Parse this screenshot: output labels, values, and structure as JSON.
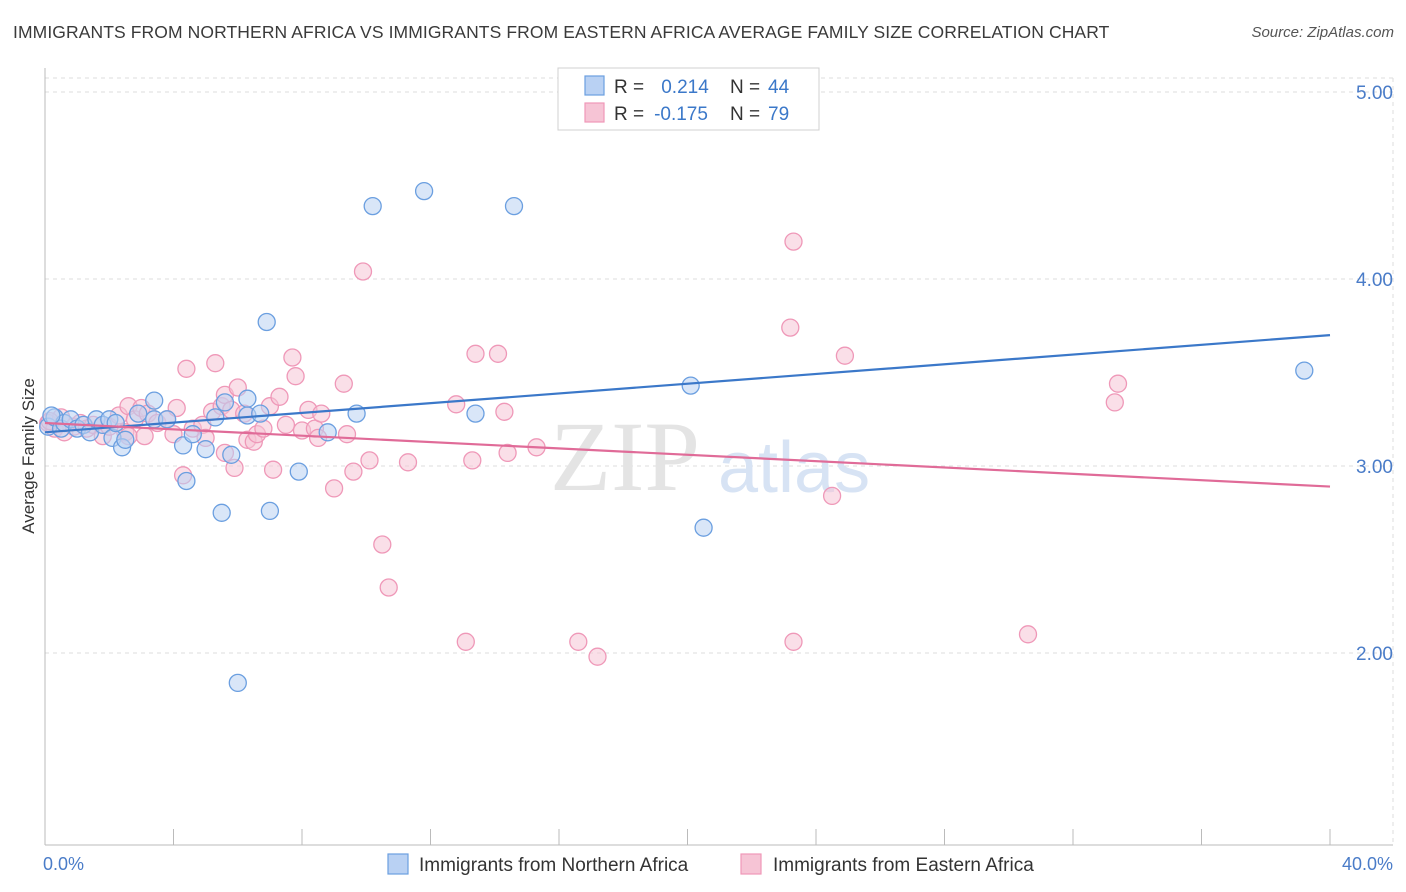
{
  "title": "IMMIGRANTS FROM NORTHERN AFRICA VS IMMIGRANTS FROM EASTERN AFRICA AVERAGE FAMILY SIZE CORRELATION CHART",
  "source": "Source: ZipAtlas.com",
  "watermark": {
    "part1": "ZIP",
    "part2": "atlas"
  },
  "colors": {
    "blue": "#3b78c9",
    "blue_fill": "#b9d1f3",
    "blue_stroke": "#6b9fe0",
    "pink": "#e06b98",
    "pink_fill": "#f6c4d5",
    "pink_stroke": "#ef98b8",
    "tick": "#4a7cc8",
    "grid": "#dddddd"
  },
  "legend": {
    "rows": [
      {
        "r_label": "R =",
        "r_value": "0.214",
        "n_label": "N =",
        "n_value": "44"
      },
      {
        "r_label": "R =",
        "r_value": "-0.175",
        "n_label": "N =",
        "n_value": "79"
      }
    ]
  },
  "chart_data": {
    "type": "scatter",
    "title": "IMMIGRANTS FROM NORTHERN AFRICA VS IMMIGRANTS FROM EASTERN AFRICA AVERAGE FAMILY SIZE CORRELATION CHART",
    "xlabel": "",
    "ylabel": "Average Family Size",
    "xlim": [
      0,
      40
    ],
    "ylim": [
      1.0,
      5.0
    ],
    "x_tick_labels": [
      "0.0%",
      "40.0%"
    ],
    "y_ticks": [
      2.0,
      3.0,
      4.0,
      5.0
    ],
    "y_tick_labels": [
      "2.00",
      "3.00",
      "4.00",
      "5.00"
    ],
    "grid": true,
    "legend_position": "top-center",
    "series": [
      {
        "name": "Immigrants from Northern Africa",
        "color": "#3b78c9",
        "trend": {
          "x": [
            0,
            40
          ],
          "y": [
            3.18,
            3.7
          ]
        },
        "points": [
          [
            0.1,
            3.21
          ],
          [
            0.3,
            3.26
          ],
          [
            0.5,
            3.2
          ],
          [
            0.6,
            3.23
          ],
          [
            0.8,
            3.25
          ],
          [
            1.0,
            3.2
          ],
          [
            1.2,
            3.22
          ],
          [
            1.4,
            3.18
          ],
          [
            1.6,
            3.25
          ],
          [
            1.8,
            3.22
          ],
          [
            2.0,
            3.25
          ],
          [
            2.1,
            3.15
          ],
          [
            2.2,
            3.23
          ],
          [
            2.4,
            3.1
          ],
          [
            2.5,
            3.14
          ],
          [
            2.9,
            3.28
          ],
          [
            3.4,
            3.25
          ],
          [
            3.8,
            3.25
          ],
          [
            3.4,
            3.35
          ],
          [
            4.3,
            3.11
          ],
          [
            4.4,
            2.92
          ],
          [
            4.6,
            3.17
          ],
          [
            5.0,
            3.09
          ],
          [
            5.3,
            3.26
          ],
          [
            5.5,
            2.75
          ],
          [
            5.6,
            3.34
          ],
          [
            5.8,
            3.06
          ],
          [
            6.0,
            1.84
          ],
          [
            6.3,
            3.36
          ],
          [
            6.3,
            3.27
          ],
          [
            6.7,
            3.28
          ],
          [
            6.9,
            3.77
          ],
          [
            7.0,
            2.76
          ],
          [
            7.9,
            2.97
          ],
          [
            8.8,
            3.18
          ],
          [
            9.7,
            3.28
          ],
          [
            10.2,
            4.39
          ],
          [
            11.8,
            4.47
          ],
          [
            13.4,
            3.28
          ],
          [
            14.6,
            4.39
          ],
          [
            20.1,
            3.43
          ],
          [
            20.5,
            2.67
          ],
          [
            39.2,
            3.51
          ],
          [
            0.2,
            3.27
          ]
        ]
      },
      {
        "name": "Immigrants from Eastern Africa",
        "color": "#e06b98",
        "trend": {
          "x": [
            0,
            40
          ],
          "y": [
            3.23,
            2.89
          ]
        },
        "points": [
          [
            0.1,
            3.23
          ],
          [
            0.3,
            3.2
          ],
          [
            0.5,
            3.26
          ],
          [
            0.6,
            3.18
          ],
          [
            0.9,
            3.21
          ],
          [
            1.1,
            3.23
          ],
          [
            1.3,
            3.2
          ],
          [
            1.5,
            3.22
          ],
          [
            1.8,
            3.16
          ],
          [
            2.0,
            3.21
          ],
          [
            2.3,
            3.27
          ],
          [
            2.5,
            3.18
          ],
          [
            2.6,
            3.16
          ],
          [
            2.6,
            3.32
          ],
          [
            2.8,
            3.25
          ],
          [
            3.0,
            3.31
          ],
          [
            3.2,
            3.28
          ],
          [
            3.1,
            3.16
          ],
          [
            3.5,
            3.23
          ],
          [
            3.8,
            3.25
          ],
          [
            4.0,
            3.17
          ],
          [
            4.1,
            3.31
          ],
          [
            4.3,
            2.95
          ],
          [
            4.4,
            3.52
          ],
          [
            4.6,
            3.2
          ],
          [
            4.9,
            3.22
          ],
          [
            5.0,
            3.15
          ],
          [
            5.2,
            3.29
          ],
          [
            5.3,
            3.55
          ],
          [
            5.5,
            3.32
          ],
          [
            5.6,
            3.38
          ],
          [
            5.8,
            3.3
          ],
          [
            5.9,
            2.99
          ],
          [
            6.0,
            3.42
          ],
          [
            6.2,
            3.28
          ],
          [
            6.3,
            3.14
          ],
          [
            6.5,
            3.13
          ],
          [
            6.6,
            3.17
          ],
          [
            6.8,
            3.2
          ],
          [
            7.0,
            3.32
          ],
          [
            7.1,
            2.98
          ],
          [
            7.3,
            3.37
          ],
          [
            7.5,
            3.22
          ],
          [
            7.7,
            3.58
          ],
          [
            7.8,
            3.48
          ],
          [
            8.0,
            3.19
          ],
          [
            8.2,
            3.3
          ],
          [
            8.4,
            3.2
          ],
          [
            8.5,
            3.15
          ],
          [
            8.6,
            3.28
          ],
          [
            9.0,
            2.88
          ],
          [
            9.3,
            3.44
          ],
          [
            9.4,
            3.17
          ],
          [
            9.6,
            2.97
          ],
          [
            9.9,
            4.04
          ],
          [
            10.1,
            3.03
          ],
          [
            10.5,
            2.58
          ],
          [
            10.7,
            2.35
          ],
          [
            11.3,
            3.02
          ],
          [
            12.8,
            3.33
          ],
          [
            13.1,
            2.06
          ],
          [
            13.3,
            3.03
          ],
          [
            13.4,
            3.6
          ],
          [
            14.1,
            3.6
          ],
          [
            14.3,
            3.29
          ],
          [
            14.4,
            3.07
          ],
          [
            15.3,
            3.1
          ],
          [
            16.6,
            2.06
          ],
          [
            17.2,
            1.98
          ],
          [
            23.3,
            2.06
          ],
          [
            23.2,
            3.74
          ],
          [
            23.3,
            4.2
          ],
          [
            24.5,
            2.84
          ],
          [
            24.9,
            3.59
          ],
          [
            30.6,
            2.1
          ],
          [
            33.3,
            3.34
          ],
          [
            33.4,
            3.44
          ],
          [
            0.15,
            3.24
          ],
          [
            5.6,
            3.07
          ]
        ]
      }
    ]
  }
}
